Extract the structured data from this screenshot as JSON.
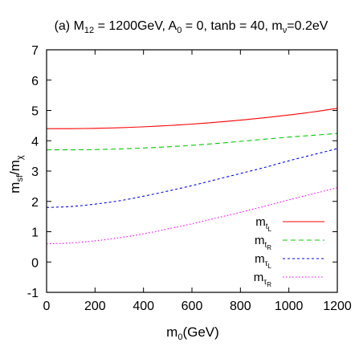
{
  "chart_data": {
    "type": "line",
    "title": {
      "prefix": "(a)  M",
      "prefix_sub": "12",
      "middle": " = 1200GeV, A",
      "middle_sub": "0",
      "rest": " = 0, tanb = 40, m",
      "rest_sub": "ν",
      "suffix": "=0.2eV"
    },
    "xlabel": {
      "base": "m",
      "sub": "0",
      "rest": "(GeV)"
    },
    "ylabel": {
      "a": "m",
      "a_sub": "sf",
      "mid": "/m",
      "b_sub": "χ"
    },
    "xlim": [
      0,
      1200
    ],
    "ylim": [
      -1,
      7
    ],
    "xticks": [
      0,
      200,
      400,
      600,
      800,
      1000,
      1200
    ],
    "yticks": [
      -1,
      0,
      1,
      2,
      3,
      4,
      5,
      6,
      7
    ],
    "grid": false,
    "legend_position": "bottom-right",
    "x": [
      0,
      100,
      200,
      300,
      400,
      500,
      600,
      700,
      800,
      900,
      1000,
      1100,
      1200
    ],
    "series": [
      {
        "name": "m_tL",
        "label_base": "m",
        "label_sub": "t",
        "label_subsub": "L",
        "color": "#ff0000",
        "dash": "none",
        "values": [
          4.4,
          4.4,
          4.41,
          4.43,
          4.46,
          4.5,
          4.55,
          4.61,
          4.68,
          4.76,
          4.85,
          4.95,
          5.07
        ]
      },
      {
        "name": "m_tR",
        "label_base": "m",
        "label_sub": "t",
        "label_subsub": "R",
        "color": "#00cc00",
        "dash": "6,4",
        "values": [
          3.7,
          3.7,
          3.71,
          3.73,
          3.76,
          3.8,
          3.85,
          3.91,
          3.98,
          4.05,
          4.12,
          4.18,
          4.24
        ]
      },
      {
        "name": "m_τL",
        "label_base": "m",
        "label_sub": "τ",
        "label_subsub": "L",
        "color": "#0000ff",
        "dash": "3,3",
        "values": [
          1.8,
          1.83,
          1.91,
          2.02,
          2.17,
          2.34,
          2.52,
          2.72,
          2.92,
          3.12,
          3.34,
          3.54,
          3.74
        ]
      },
      {
        "name": "m_τR",
        "label_base": "m",
        "label_sub": "τ",
        "label_subsub": "R",
        "color": "#ff00ff",
        "dash": "1.5,2.5",
        "values": [
          0.6,
          0.63,
          0.7,
          0.8,
          0.93,
          1.09,
          1.26,
          1.45,
          1.64,
          1.84,
          2.05,
          2.25,
          2.45
        ]
      }
    ]
  }
}
